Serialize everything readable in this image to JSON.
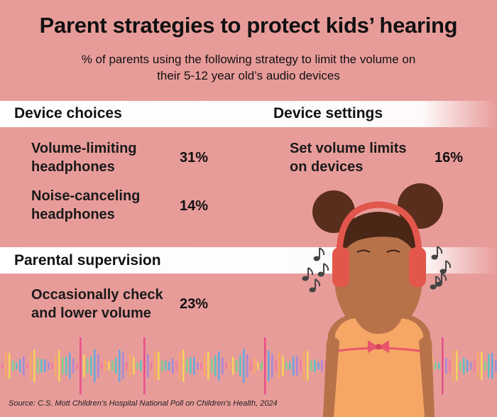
{
  "header": {
    "title": "Parent strategies to protect kids’ hearing",
    "subtitle": "% of parents using the following strategy to limit the volume on their 5-12 year old’s audio devices"
  },
  "sections": [
    {
      "title": "Device choices",
      "items": [
        {
          "label": "Volume-limiting headphones",
          "value": "31%"
        },
        {
          "label": "Noise-canceling headphones",
          "value": "14%"
        }
      ]
    },
    {
      "title": "Device settings",
      "items": [
        {
          "label": "Set volume limits on devices",
          "value": "16%"
        }
      ]
    },
    {
      "title": "Parental supervision",
      "items": [
        {
          "label": "Occasionally check and lower volume",
          "value": "23%"
        }
      ]
    }
  ],
  "footer": {
    "source": "Source: C.S. Mott Children’s Hospital National Poll on Children’s Health, 2024"
  }
}
